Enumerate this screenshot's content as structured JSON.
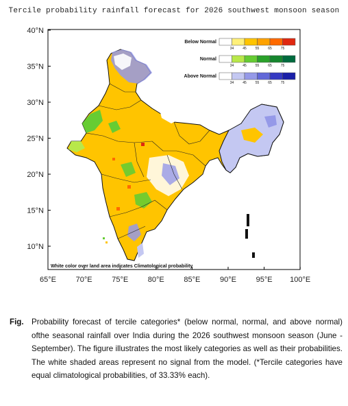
{
  "title": "Tercile probability rainfall forecast for 2026 southwest monsoon  season",
  "map": {
    "lat_labels": [
      "40°N",
      "35°N",
      "30°N",
      "25°N",
      "20°N",
      "15°N",
      "10°N"
    ],
    "lon_labels": [
      "65°E",
      "70°E",
      "75°E",
      "80°E",
      "85°E",
      "90°E",
      "95°E",
      "100°E"
    ],
    "note": "White color over land area indicates Climatological probability"
  },
  "legend": {
    "categories": [
      {
        "label": "Below Normal",
        "colors": [
          "#ffffff",
          "#fff07a",
          "#ffc400",
          "#ffa200",
          "#ff6a00",
          "#e02810"
        ]
      },
      {
        "label": "Normal",
        "colors": [
          "#ffffff",
          "#b8e84a",
          "#66cc33",
          "#2aa12a",
          "#16862e",
          "#006b3e"
        ]
      },
      {
        "label": "Above Normal",
        "colors": [
          "#ffffff",
          "#c4c8f2",
          "#9599e8",
          "#6268d8",
          "#3539c2",
          "#1a1fa8"
        ]
      }
    ],
    "ticks": [
      "34",
      "45",
      "55",
      "65",
      "75"
    ]
  },
  "caption": {
    "fig_label": "Fig.",
    "text": "Probability forecast of tercile categories* (below normal, normal, and above normal) ofthe seasonal rainfall over India during the 2026 southwest monsoon season (June -September).  The figure illustrates the most likely categories as well as their probabilities.  The white shaded areas represent no signal from the model. (*Tercile categories have equal climatological probabilities, of 33.33% each)."
  }
}
